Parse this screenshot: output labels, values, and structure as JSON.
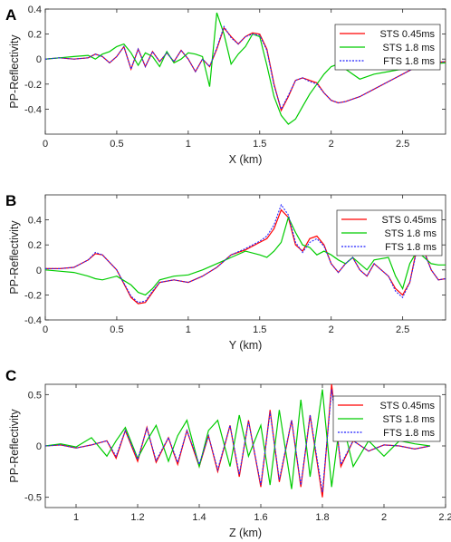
{
  "chart_data": [
    {
      "type": "line",
      "panel_label": "A",
      "xlabel": "X (km)",
      "ylabel": "PP-Reflectivity",
      "xlim": [
        0,
        2.8
      ],
      "ylim": [
        -0.6,
        0.4
      ],
      "xticks": [
        0,
        0.5,
        1,
        1.5,
        2,
        2.5
      ],
      "yticks": [
        -0.4,
        -0.2,
        0,
        0.2,
        0.4
      ],
      "tick_labels_x": [
        "0",
        "0.5",
        "1",
        "1.5",
        "2",
        "2.5"
      ],
      "tick_labels_y": [
        "-0.4",
        "-0.2",
        "0",
        "0.2",
        "0.4"
      ],
      "legend": "top-right",
      "series": [
        {
          "name": "STS 0.45ms",
          "color": "#ff0000",
          "dash": "solid",
          "x": [
            0,
            0.1,
            0.2,
            0.3,
            0.35,
            0.4,
            0.45,
            0.5,
            0.55,
            0.6,
            0.65,
            0.7,
            0.75,
            0.8,
            0.85,
            0.9,
            0.95,
            1.0,
            1.05,
            1.1,
            1.15,
            1.2,
            1.25,
            1.3,
            1.35,
            1.4,
            1.45,
            1.5,
            1.55,
            1.6,
            1.65,
            1.7,
            1.75,
            1.8,
            1.85,
            1.9,
            1.95,
            2.0,
            2.05,
            2.1,
            2.2,
            2.3,
            2.4,
            2.5,
            2.6,
            2.7,
            2.8
          ],
          "y": [
            0,
            0.01,
            0.0,
            0.01,
            0.04,
            0.02,
            -0.03,
            0.02,
            0.1,
            -0.08,
            0.08,
            -0.06,
            0.06,
            -0.02,
            0.05,
            -0.02,
            0.07,
            0.0,
            -0.1,
            0.0,
            -0.06,
            0.08,
            0.25,
            0.18,
            0.12,
            0.18,
            0.21,
            0.2,
            0.08,
            -0.2,
            -0.41,
            -0.3,
            -0.17,
            -0.15,
            -0.17,
            -0.19,
            -0.27,
            -0.33,
            -0.35,
            -0.34,
            -0.3,
            -0.24,
            -0.18,
            -0.12,
            -0.06,
            -0.03,
            -0.02
          ]
        },
        {
          "name": "STS 1.8 ms",
          "color": "#00cc00",
          "dash": "solid",
          "x": [
            0,
            0.1,
            0.2,
            0.3,
            0.35,
            0.4,
            0.45,
            0.5,
            0.55,
            0.6,
            0.65,
            0.7,
            0.75,
            0.8,
            0.85,
            0.9,
            0.95,
            1.0,
            1.05,
            1.1,
            1.15,
            1.2,
            1.25,
            1.3,
            1.35,
            1.4,
            1.45,
            1.5,
            1.55,
            1.6,
            1.65,
            1.7,
            1.75,
            1.8,
            1.85,
            1.9,
            1.95,
            2.0,
            2.05,
            2.1,
            2.2,
            2.3,
            2.4,
            2.5,
            2.6,
            2.7,
            2.8
          ],
          "y": [
            0,
            0.01,
            0.02,
            0.03,
            0.0,
            0.04,
            0.06,
            0.1,
            0.12,
            0.05,
            -0.05,
            0.05,
            0.02,
            -0.06,
            0.06,
            -0.03,
            0.0,
            0.05,
            0.04,
            0.02,
            -0.22,
            0.37,
            0.2,
            -0.04,
            0.04,
            0.1,
            0.2,
            0.18,
            -0.05,
            -0.3,
            -0.45,
            -0.52,
            -0.48,
            -0.38,
            -0.28,
            -0.2,
            -0.12,
            -0.06,
            -0.04,
            -0.08,
            -0.16,
            -0.12,
            -0.1,
            -0.08,
            -0.06,
            -0.04,
            -0.03
          ]
        },
        {
          "name": "FTS 1.8 ms",
          "color": "#2222ff",
          "dash": "dotted",
          "x": [
            0,
            0.1,
            0.2,
            0.3,
            0.35,
            0.4,
            0.45,
            0.5,
            0.55,
            0.6,
            0.65,
            0.7,
            0.75,
            0.8,
            0.85,
            0.9,
            0.95,
            1.0,
            1.05,
            1.1,
            1.15,
            1.2,
            1.25,
            1.3,
            1.35,
            1.4,
            1.45,
            1.5,
            1.55,
            1.6,
            1.65,
            1.7,
            1.75,
            1.8,
            1.85,
            1.9,
            1.95,
            2.0,
            2.05,
            2.1,
            2.2,
            2.3,
            2.4,
            2.5,
            2.6,
            2.7,
            2.8
          ],
          "y": [
            0,
            0.01,
            0.0,
            0.01,
            0.04,
            0.02,
            -0.03,
            0.02,
            0.1,
            -0.08,
            0.08,
            -0.06,
            0.06,
            -0.02,
            0.05,
            -0.02,
            0.07,
            0.0,
            -0.1,
            0.0,
            -0.06,
            0.09,
            0.26,
            0.17,
            0.12,
            0.18,
            0.2,
            0.19,
            0.07,
            -0.21,
            -0.4,
            -0.29,
            -0.17,
            -0.15,
            -0.18,
            -0.2,
            -0.27,
            -0.33,
            -0.35,
            -0.34,
            -0.3,
            -0.24,
            -0.18,
            -0.12,
            -0.06,
            -0.03,
            -0.02
          ]
        }
      ]
    },
    {
      "type": "line",
      "panel_label": "B",
      "xlabel": "Y (km)",
      "ylabel": "PP-Reflectivity",
      "xlim": [
        0,
        2.8
      ],
      "ylim": [
        -0.4,
        0.6
      ],
      "xticks": [
        0,
        0.5,
        1,
        1.5,
        2,
        2.5
      ],
      "yticks": [
        -0.4,
        -0.2,
        0,
        0.2,
        0.4
      ],
      "tick_labels_x": [
        "0",
        "0.5",
        "1",
        "1.5",
        "2",
        "2.5"
      ],
      "tick_labels_y": [
        "-0.4",
        "-0.2",
        "0",
        "0.2",
        "0.4"
      ],
      "legend": "top-right",
      "series": [
        {
          "name": "STS 0.45ms",
          "color": "#ff0000",
          "dash": "solid",
          "x": [
            0,
            0.1,
            0.2,
            0.3,
            0.35,
            0.4,
            0.5,
            0.6,
            0.65,
            0.7,
            0.75,
            0.8,
            0.9,
            1.0,
            1.1,
            1.2,
            1.3,
            1.4,
            1.5,
            1.55,
            1.6,
            1.65,
            1.7,
            1.75,
            1.8,
            1.85,
            1.9,
            1.95,
            2.0,
            2.05,
            2.1,
            2.15,
            2.2,
            2.25,
            2.3,
            2.4,
            2.45,
            2.5,
            2.55,
            2.6,
            2.65,
            2.7,
            2.75,
            2.8
          ],
          "y": [
            0.01,
            0.01,
            0.02,
            0.08,
            0.13,
            0.12,
            0.0,
            -0.22,
            -0.27,
            -0.26,
            -0.18,
            -0.1,
            -0.08,
            -0.1,
            -0.05,
            0.02,
            0.12,
            0.16,
            0.22,
            0.25,
            0.33,
            0.48,
            0.42,
            0.2,
            0.15,
            0.25,
            0.27,
            0.2,
            0.05,
            -0.02,
            0.05,
            0.1,
            0.0,
            -0.05,
            0.05,
            -0.05,
            -0.15,
            -0.2,
            -0.1,
            0.18,
            0.15,
            0.0,
            -0.08,
            -0.07
          ]
        },
        {
          "name": "STS 1.8 ms",
          "color": "#00cc00",
          "dash": "solid",
          "x": [
            0,
            0.1,
            0.2,
            0.3,
            0.35,
            0.4,
            0.5,
            0.6,
            0.65,
            0.7,
            0.75,
            0.8,
            0.9,
            1.0,
            1.1,
            1.2,
            1.3,
            1.4,
            1.5,
            1.55,
            1.6,
            1.65,
            1.7,
            1.75,
            1.8,
            1.85,
            1.9,
            1.95,
            2.0,
            2.05,
            2.1,
            2.15,
            2.2,
            2.25,
            2.3,
            2.4,
            2.45,
            2.5,
            2.55,
            2.6,
            2.65,
            2.7,
            2.75,
            2.8
          ],
          "y": [
            0.0,
            -0.01,
            -0.02,
            -0.05,
            -0.07,
            -0.08,
            -0.05,
            -0.12,
            -0.18,
            -0.2,
            -0.15,
            -0.08,
            -0.05,
            -0.04,
            0.0,
            0.05,
            0.1,
            0.15,
            0.12,
            0.1,
            0.15,
            0.22,
            0.42,
            0.3,
            0.2,
            0.18,
            0.12,
            0.15,
            0.12,
            0.08,
            0.05,
            0.1,
            0.05,
            0.0,
            0.08,
            0.1,
            -0.05,
            -0.15,
            0.05,
            0.15,
            0.1,
            0.05,
            0.04,
            0.04
          ]
        },
        {
          "name": "FTS 1.8 ms",
          "color": "#2222ff",
          "dash": "dotted",
          "x": [
            0,
            0.1,
            0.2,
            0.3,
            0.35,
            0.4,
            0.5,
            0.6,
            0.65,
            0.7,
            0.75,
            0.8,
            0.9,
            1.0,
            1.1,
            1.2,
            1.3,
            1.4,
            1.5,
            1.55,
            1.6,
            1.65,
            1.7,
            1.75,
            1.8,
            1.85,
            1.9,
            1.95,
            2.0,
            2.05,
            2.1,
            2.15,
            2.2,
            2.25,
            2.3,
            2.4,
            2.45,
            2.5,
            2.55,
            2.6,
            2.65,
            2.7,
            2.75,
            2.8
          ],
          "y": [
            0.01,
            0.01,
            0.02,
            0.08,
            0.14,
            0.12,
            0.0,
            -0.21,
            -0.26,
            -0.25,
            -0.17,
            -0.1,
            -0.08,
            -0.1,
            -0.05,
            0.02,
            0.12,
            0.17,
            0.23,
            0.27,
            0.36,
            0.52,
            0.44,
            0.22,
            0.14,
            0.22,
            0.25,
            0.19,
            0.05,
            -0.02,
            0.05,
            0.1,
            0.0,
            -0.05,
            0.05,
            -0.05,
            -0.17,
            -0.22,
            -0.1,
            0.16,
            0.14,
            0.0,
            -0.08,
            -0.07
          ]
        }
      ]
    },
    {
      "type": "line",
      "panel_label": "C",
      "xlabel": "Z (km)",
      "ylabel": "PP-Reflectivity",
      "xlim": [
        0.9,
        2.2
      ],
      "ylim": [
        -0.6,
        0.6
      ],
      "xticks": [
        1,
        1.2,
        1.4,
        1.6,
        1.8,
        2,
        2.2
      ],
      "yticks": [
        -0.5,
        0,
        0.5
      ],
      "tick_labels_x": [
        "1",
        "1.2",
        "1.4",
        "1.6",
        "1.8",
        "2",
        "2.2"
      ],
      "tick_labels_y": [
        "-0.5",
        "0",
        "0.5"
      ],
      "legend": "top-right",
      "series": [
        {
          "name": "STS 0.45ms",
          "color": "#ff0000",
          "dash": "solid",
          "x": [
            0.9,
            0.95,
            1.0,
            1.05,
            1.1,
            1.13,
            1.16,
            1.2,
            1.23,
            1.26,
            1.3,
            1.33,
            1.36,
            1.4,
            1.43,
            1.46,
            1.5,
            1.53,
            1.56,
            1.6,
            1.63,
            1.66,
            1.7,
            1.73,
            1.76,
            1.8,
            1.83,
            1.86,
            1.9,
            1.95,
            2.0,
            2.05,
            2.1,
            2.15
          ],
          "y": [
            0.0,
            0.01,
            -0.02,
            0.01,
            0.05,
            -0.12,
            0.15,
            -0.15,
            0.18,
            -0.16,
            0.08,
            -0.18,
            0.15,
            -0.2,
            0.1,
            -0.25,
            0.2,
            -0.3,
            0.25,
            -0.4,
            0.35,
            -0.35,
            0.25,
            -0.4,
            0.3,
            -0.5,
            0.6,
            -0.2,
            0.05,
            -0.05,
            0.01,
            0.0,
            -0.03,
            0.0
          ]
        },
        {
          "name": "STS 1.8 ms",
          "color": "#00cc00",
          "dash": "solid",
          "x": [
            0.9,
            0.95,
            1.0,
            1.05,
            1.1,
            1.13,
            1.16,
            1.2,
            1.23,
            1.26,
            1.3,
            1.33,
            1.36,
            1.4,
            1.43,
            1.46,
            1.5,
            1.53,
            1.56,
            1.6,
            1.63,
            1.66,
            1.7,
            1.73,
            1.76,
            1.8,
            1.83,
            1.86,
            1.9,
            1.95,
            2.0,
            2.05,
            2.1,
            2.15
          ],
          "y": [
            0.0,
            0.02,
            -0.01,
            0.08,
            -0.1,
            0.05,
            0.18,
            -0.12,
            0.05,
            0.2,
            -0.15,
            0.1,
            0.25,
            -0.2,
            0.15,
            0.25,
            -0.2,
            0.3,
            -0.1,
            0.2,
            -0.38,
            0.35,
            -0.42,
            0.45,
            -0.3,
            0.55,
            -0.4,
            0.3,
            -0.2,
            0.05,
            -0.1,
            0.05,
            0.02,
            0.0
          ]
        },
        {
          "name": "FTS 1.8 ms",
          "color": "#2222ff",
          "dash": "dotted",
          "x": [
            0.9,
            0.95,
            1.0,
            1.05,
            1.1,
            1.13,
            1.16,
            1.2,
            1.23,
            1.26,
            1.3,
            1.33,
            1.36,
            1.4,
            1.43,
            1.46,
            1.5,
            1.53,
            1.56,
            1.6,
            1.63,
            1.66,
            1.7,
            1.73,
            1.76,
            1.8,
            1.83,
            1.86,
            1.9,
            1.95,
            2.0,
            2.05,
            2.1,
            2.15
          ],
          "y": [
            0.0,
            0.01,
            -0.02,
            0.01,
            0.05,
            -0.1,
            0.15,
            -0.13,
            0.17,
            -0.14,
            0.08,
            -0.16,
            0.15,
            -0.18,
            0.1,
            -0.23,
            0.2,
            -0.28,
            0.24,
            -0.38,
            0.33,
            -0.33,
            0.25,
            -0.38,
            0.3,
            -0.45,
            0.55,
            -0.18,
            0.05,
            -0.05,
            0.01,
            0.0,
            -0.03,
            0.0
          ]
        }
      ]
    }
  ]
}
